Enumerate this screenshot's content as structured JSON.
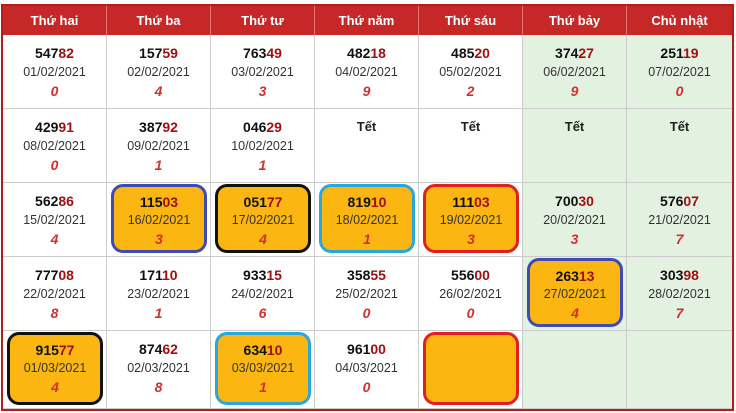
{
  "header": [
    "Thứ hai",
    "Thứ ba",
    "Thứ tư",
    "Thứ năm",
    "Thứ sáu",
    "Thứ bảy",
    "Chủ nhật"
  ],
  "colors": {
    "header_bg": "#c62828",
    "weekend_bg": "#e3f1e0",
    "highlight_bg": "#fbb612",
    "digit_red": "#d32f2f",
    "tail_red": "#a01010",
    "ring_blue": "#3f4bb5",
    "ring_black": "#111111",
    "ring_cyan": "#29a8dc",
    "ring_red": "#e02020"
  },
  "rows": [
    [
      {
        "head": "547",
        "tail": "82",
        "date": "01/02/2021",
        "digit": "0"
      },
      {
        "head": "157",
        "tail": "59",
        "date": "02/02/2021",
        "digit": "4"
      },
      {
        "head": "763",
        "tail": "49",
        "date": "03/02/2021",
        "digit": "3"
      },
      {
        "head": "482",
        "tail": "18",
        "date": "04/02/2021",
        "digit": "9"
      },
      {
        "head": "485",
        "tail": "20",
        "date": "05/02/2021",
        "digit": "2"
      },
      {
        "head": "374",
        "tail": "27",
        "date": "06/02/2021",
        "digit": "9"
      },
      {
        "head": "251",
        "tail": "19",
        "date": "07/02/2021",
        "digit": "0"
      }
    ],
    [
      {
        "head": "429",
        "tail": "91",
        "date": "08/02/2021",
        "digit": "0"
      },
      {
        "head": "387",
        "tail": "92",
        "date": "09/02/2021",
        "digit": "1"
      },
      {
        "head": "046",
        "tail": "29",
        "date": "10/02/2021",
        "digit": "1"
      },
      {
        "text": "Tết"
      },
      {
        "text": "Tết"
      },
      {
        "text": "Tết"
      },
      {
        "text": "Tết"
      }
    ],
    [
      {
        "head": "562",
        "tail": "86",
        "date": "15/02/2021",
        "digit": "4"
      },
      {
        "head": "115",
        "tail": "03",
        "date": "16/02/2021",
        "digit": "3",
        "ring": "blue"
      },
      {
        "head": "051",
        "tail": "77",
        "date": "17/02/2021",
        "digit": "4",
        "ring": "black"
      },
      {
        "head": "819",
        "tail": "10",
        "date": "18/02/2021",
        "digit": "1",
        "ring": "cyan"
      },
      {
        "head": "111",
        "tail": "03",
        "date": "19/02/2021",
        "digit": "3",
        "ring": "red"
      },
      {
        "head": "700",
        "tail": "30",
        "date": "20/02/2021",
        "digit": "3"
      },
      {
        "head": "576",
        "tail": "07",
        "date": "21/02/2021",
        "digit": "7"
      }
    ],
    [
      {
        "head": "777",
        "tail": "08",
        "date": "22/02/2021",
        "digit": "8"
      },
      {
        "head": "171",
        "tail": "10",
        "date": "23/02/2021",
        "digit": "1"
      },
      {
        "head": "933",
        "tail": "15",
        "date": "24/02/2021",
        "digit": "6"
      },
      {
        "head": "358",
        "tail": "55",
        "date": "25/02/2021",
        "digit": "0"
      },
      {
        "head": "556",
        "tail": "00",
        "date": "26/02/2021",
        "digit": "0"
      },
      {
        "head": "263",
        "tail": "13",
        "date": "27/02/2021",
        "digit": "4",
        "ring": "blue"
      },
      {
        "head": "303",
        "tail": "98",
        "date": "28/02/2021",
        "digit": "7"
      }
    ],
    [
      {
        "head": "915",
        "tail": "77",
        "date": "01/03/2021",
        "digit": "4",
        "ring": "black"
      },
      {
        "head": "874",
        "tail": "62",
        "date": "02/03/2021",
        "digit": "8"
      },
      {
        "head": "634",
        "tail": "10",
        "date": "03/03/2021",
        "digit": "1",
        "ring": "cyan"
      },
      {
        "head": "961",
        "tail": "00",
        "date": "04/03/2021",
        "digit": "0"
      },
      {
        "ring": "red"
      },
      {},
      {}
    ]
  ]
}
